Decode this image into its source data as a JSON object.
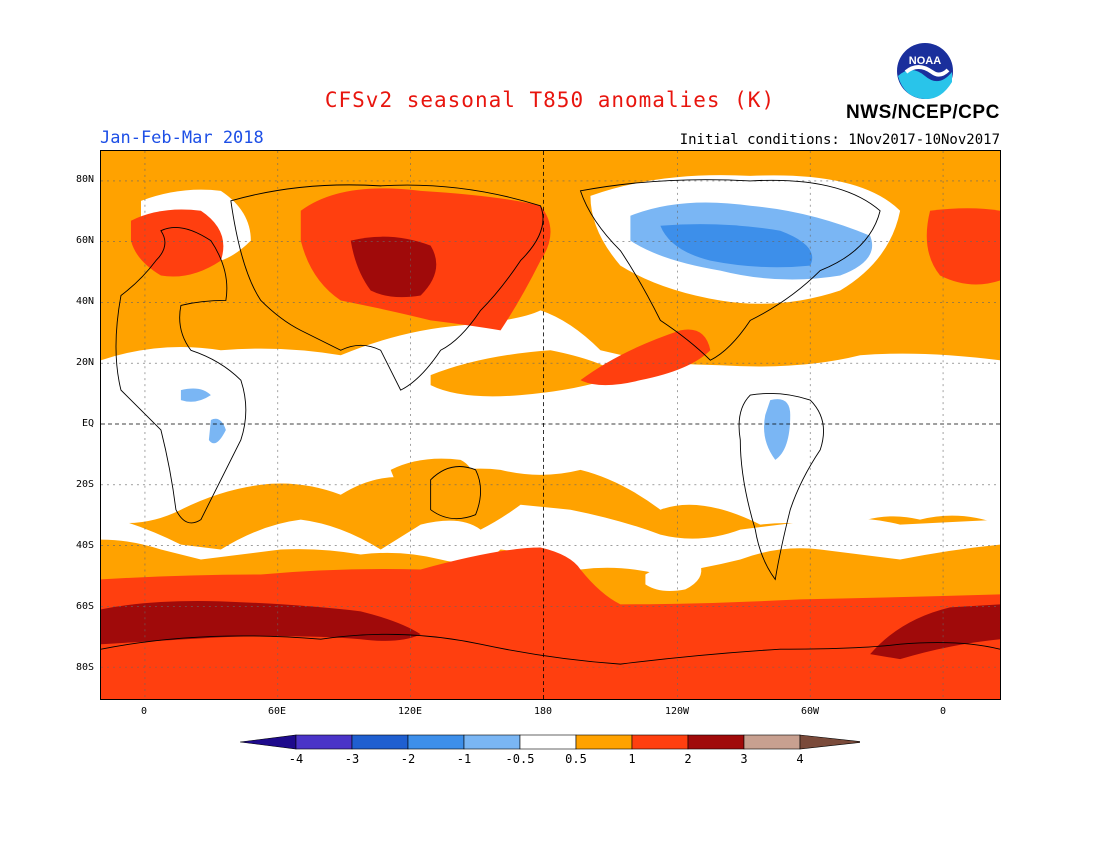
{
  "header": {
    "title": "CFSv2 seasonal T850 anomalies (K)",
    "period": "Jan-Feb-Mar 2018",
    "initial_conditions": "Initial conditions: 1Nov2017-10Nov2017",
    "agency": "NWS/NCEP/CPC",
    "logo_text": "NOAA"
  },
  "colors": {
    "title": "#e8150e",
    "period": "#1d4fe6",
    "ocean_land_base": "#ffa200",
    "neutral": "#ffffff"
  },
  "axes": {
    "lat_labels": [
      "80N",
      "60N",
      "40N",
      "20N",
      "EQ",
      "20S",
      "40S",
      "60S",
      "80S"
    ],
    "lon_labels": [
      "0",
      "60E",
      "120E",
      "180",
      "120W",
      "60W",
      "0"
    ]
  },
  "legend": {
    "bins": [
      {
        "range": "< -4",
        "color": "#1e0a8c"
      },
      {
        "range": "-4 to -3",
        "color": "#4a34c8"
      },
      {
        "range": "-3 to -2",
        "color": "#1f5fd0"
      },
      {
        "range": "-2 to -1",
        "color": "#3d8fea"
      },
      {
        "range": "-1 to -0.5",
        "color": "#7ab6f4"
      },
      {
        "range": "-0.5 to 0.5",
        "color": "#ffffff"
      },
      {
        "range": "0.5 to 1",
        "color": "#ffa200"
      },
      {
        "range": "1 to 2",
        "color": "#ff3f0f"
      },
      {
        "range": "2 to 3",
        "color": "#a00a0a"
      },
      {
        "range": "3 to 4",
        "color": "#c8a090"
      },
      {
        "range": "> 4",
        "color": "#7a4a3a"
      }
    ],
    "tick_labels": [
      "-4",
      "-3",
      "-2",
      "-1",
      "-0.5",
      "0.5",
      "1",
      "2",
      "3",
      "4"
    ]
  }
}
